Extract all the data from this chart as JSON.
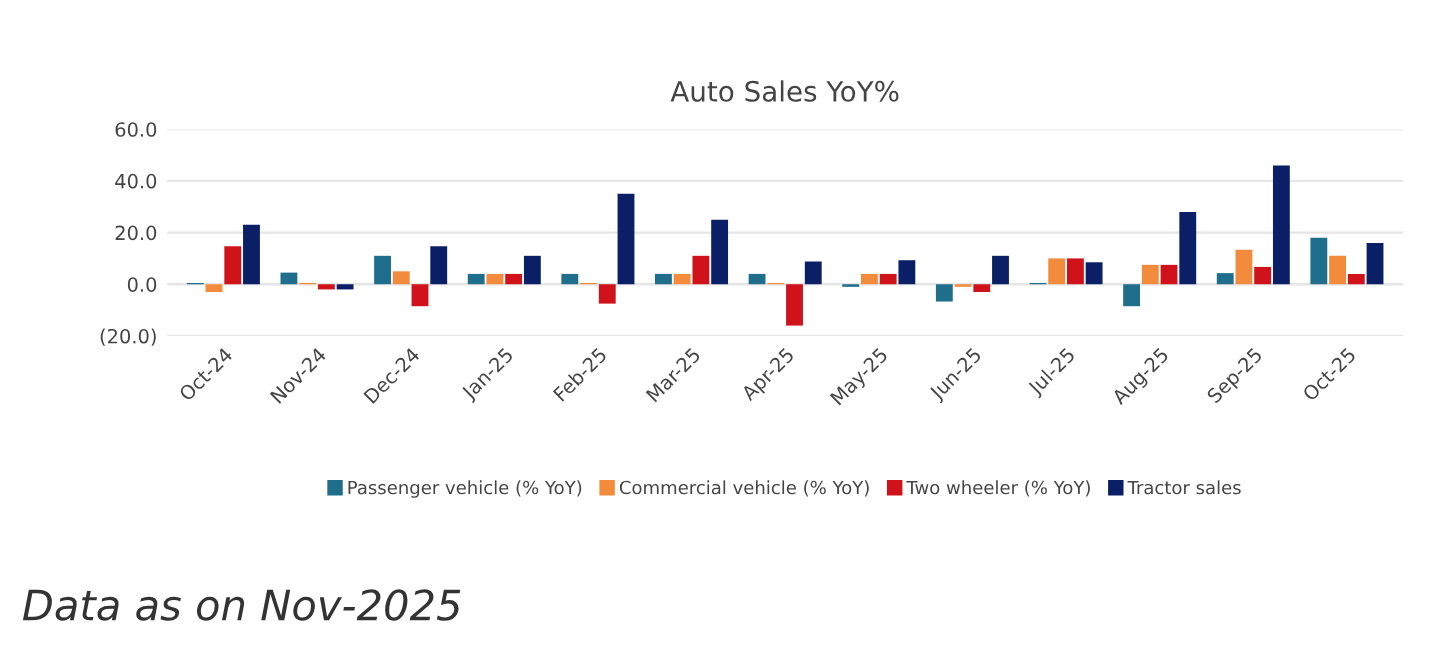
{
  "chart_data": {
    "type": "bar",
    "title": "Auto Sales YoY%",
    "categories": [
      "Oct-24",
      "Nov-24",
      "Dec-24",
      "Jan-25",
      "Feb-25",
      "Mar-25",
      "Apr-25",
      "May-25",
      "Jun-25",
      "Jul-25",
      "Aug-25",
      "Sep-25",
      "Oct-25"
    ],
    "series": [
      {
        "name": "Passenger vehicle (% YoY)",
        "color": "#1f6e8c",
        "values": [
          0.5,
          4.5,
          11,
          4,
          4,
          4,
          4,
          -1,
          -6.7,
          0.5,
          -8.5,
          4.3,
          18
        ]
      },
      {
        "name": "Commercial vehicle (% YoY)",
        "color": "#f28c3c",
        "values": [
          -3,
          0.5,
          5,
          4,
          0.5,
          4,
          0.5,
          4,
          -1,
          10,
          7.5,
          13.3,
          11
        ]
      },
      {
        "name": "Two wheeler (% YoY)",
        "color": "#d0121b",
        "values": [
          14.7,
          -2,
          -8.5,
          4,
          -7.5,
          11,
          -16,
          4,
          -3,
          10,
          7.5,
          6.7,
          4
        ]
      },
      {
        "name": "Tractor sales",
        "color": "#0b1f66",
        "values": [
          23,
          -2,
          14.7,
          11,
          35,
          25,
          8.8,
          9.3,
          11,
          8.5,
          28,
          46,
          16
        ]
      }
    ],
    "ylim": [
      -20,
      60
    ],
    "yticks": [
      {
        "value": -20,
        "label": "(20.0)"
      },
      {
        "value": 0,
        "label": "0.0"
      },
      {
        "value": 20,
        "label": "20.0"
      },
      {
        "value": 40,
        "label": "40.0"
      },
      {
        "value": 60,
        "label": "60.0"
      }
    ],
    "grid": "y",
    "legend": "bottom",
    "annotations": [
      "Data as on Nov-2025"
    ]
  }
}
